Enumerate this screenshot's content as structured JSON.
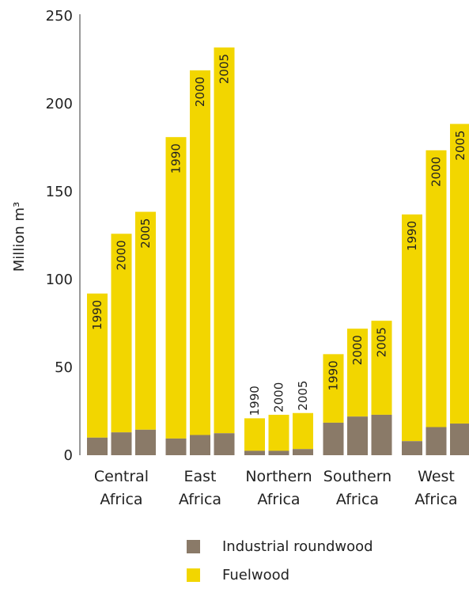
{
  "chart_data": {
    "type": "bar",
    "stacked": true,
    "ylabel": "Million m³",
    "ylim": [
      0,
      250
    ],
    "yticks": [
      0,
      50,
      100,
      150,
      200,
      250
    ],
    "grid": false,
    "legend_position": "bottom",
    "colors": {
      "Industrial roundwood": "#8a7a68",
      "Fuelwood": "#f2d600"
    },
    "groups": [
      {
        "label": [
          "Central",
          "Africa"
        ],
        "bars": [
          {
            "year": "1990",
            "industrial": 10,
            "fuelwood": 82
          },
          {
            "year": "2000",
            "industrial": 13,
            "fuelwood": 113
          },
          {
            "year": "2005",
            "industrial": 14.5,
            "fuelwood": 124
          }
        ]
      },
      {
        "label": [
          "East",
          "Africa"
        ],
        "bars": [
          {
            "year": "1990",
            "industrial": 9.5,
            "fuelwood": 171.5
          },
          {
            "year": "2000",
            "industrial": 11.5,
            "fuelwood": 207.5
          },
          {
            "year": "2005",
            "industrial": 12.5,
            "fuelwood": 219.5
          }
        ]
      },
      {
        "label": [
          "Northern",
          "Africa"
        ],
        "bars": [
          {
            "year": "1990",
            "industrial": 2.5,
            "fuelwood": 18.5
          },
          {
            "year": "2000",
            "industrial": 2.5,
            "fuelwood": 20.5
          },
          {
            "year": "2005",
            "industrial": 3.5,
            "fuelwood": 20.5
          }
        ]
      },
      {
        "label": [
          "Southern",
          "Africa"
        ],
        "bars": [
          {
            "year": "1990",
            "industrial": 18.5,
            "fuelwood": 39
          },
          {
            "year": "2000",
            "industrial": 22,
            "fuelwood": 50
          },
          {
            "year": "2005",
            "industrial": 23,
            "fuelwood": 53.5
          }
        ]
      },
      {
        "label": [
          "West",
          "Africa"
        ],
        "bars": [
          {
            "year": "1990",
            "industrial": 8,
            "fuelwood": 129
          },
          {
            "year": "2000",
            "industrial": 16,
            "fuelwood": 157.5
          },
          {
            "year": "2005",
            "industrial": 18,
            "fuelwood": 170.5
          }
        ]
      }
    ],
    "series": [
      {
        "name": "Industrial roundwood",
        "color": "#8a7a68"
      },
      {
        "name": "Fuelwood",
        "color": "#f2d600"
      }
    ]
  }
}
